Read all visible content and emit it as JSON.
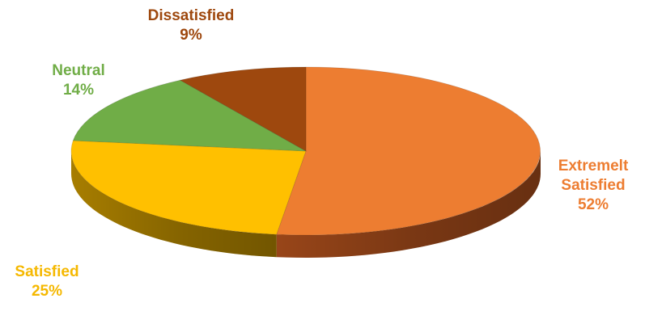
{
  "chart_data": {
    "type": "pie",
    "title": "",
    "slices": [
      {
        "label_lines": [
          "Extremelt",
          "Satisfied"
        ],
        "percent_label": "52%",
        "value": 52,
        "color": "#ED7D31",
        "side_color": "#A0491A"
      },
      {
        "label_lines": [
          "Satisfied"
        ],
        "percent_label": "25%",
        "value": 25,
        "color": "#FFC000",
        "side_color": "#B08400"
      },
      {
        "label_lines": [
          "Neutral"
        ],
        "percent_label": "14%",
        "value": 14,
        "color": "#70AD47",
        "side_color": "#4A7A2E"
      },
      {
        "label_lines": [
          "Dissatisfied"
        ],
        "percent_label": "9%",
        "value": 9,
        "color": "#9E480E",
        "side_color": "#6A2E08"
      }
    ],
    "start": "12 o'clock",
    "direction": "clockwise",
    "style": "3d"
  }
}
